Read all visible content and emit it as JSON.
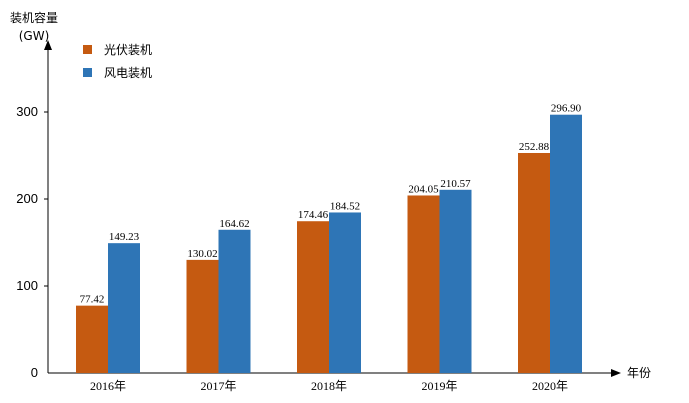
{
  "chart_data": {
    "type": "bar",
    "ylabel": "装机容量",
    "yunit": "(GW)",
    "xlabel": "年份",
    "categories": [
      "2016年",
      "2017年",
      "2018年",
      "2019年",
      "2020年"
    ],
    "series": [
      {
        "name": "光伏装机",
        "color": "#C55A11",
        "values": [
          77.42,
          130.02,
          174.46,
          204.05,
          252.88
        ]
      },
      {
        "name": "风电装机",
        "color": "#2E75B6",
        "values": [
          149.23,
          164.62,
          184.52,
          210.57,
          296.9
        ]
      }
    ],
    "value_labels": [
      [
        "77.42",
        "130.02",
        "174.46",
        "204.05",
        "252.88"
      ],
      [
        "149.23",
        "164.62",
        "184.52",
        "210.57",
        "296.90"
      ]
    ],
    "yticks": [
      "0",
      "100",
      "200",
      "300"
    ],
    "ylim": [
      0,
      300
    ],
    "grid": false,
    "legend_position": "top-left"
  }
}
